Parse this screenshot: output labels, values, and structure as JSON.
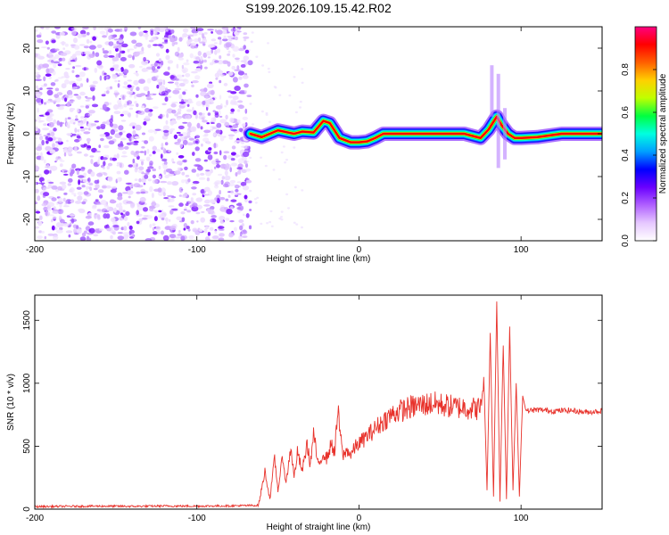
{
  "chart_data": [
    {
      "type": "heatmap",
      "title": "S199.2026.109.15.42.R02",
      "xlabel": "Height of straight line (km)",
      "ylabel": "Frequency (Hz)",
      "xlim": [
        -200,
        150
      ],
      "ylim": [
        -25,
        25
      ],
      "x_ticks": [
        -200,
        -100,
        0,
        100
      ],
      "y_ticks": [
        -20,
        -10,
        0,
        10,
        20
      ],
      "colorbar": {
        "label": "Normalized spectral amplitude",
        "range": [
          0,
          1
        ],
        "ticks": [
          "0.0",
          "0.2",
          "0.4",
          "0.6",
          "0.8"
        ],
        "colors": [
          "#ffffff",
          "#e6c8ff",
          "#b060ff",
          "#6a00ff",
          "#0000ff",
          "#00a0ff",
          "#00ffe0",
          "#00ff40",
          "#c0ff00",
          "#ffd000",
          "#ff6000",
          "#ff0000",
          "#ff0080"
        ]
      },
      "noise_region_x": [
        -200,
        -67
      ],
      "ridge_center": [
        {
          "x": -67,
          "y": 0
        },
        {
          "x": -60,
          "y": -0.8
        },
        {
          "x": -50,
          "y": 0.8
        },
        {
          "x": -40,
          "y": 0
        },
        {
          "x": -35,
          "y": 0.5
        },
        {
          "x": -28,
          "y": 0.3
        },
        {
          "x": -22,
          "y": 3
        },
        {
          "x": -18,
          "y": 2.5
        },
        {
          "x": -12,
          "y": -1
        },
        {
          "x": -5,
          "y": -2
        },
        {
          "x": 0,
          "y": -2
        },
        {
          "x": 5,
          "y": -1.8
        },
        {
          "x": 10,
          "y": -1
        },
        {
          "x": 15,
          "y": 0
        },
        {
          "x": 30,
          "y": 0
        },
        {
          "x": 65,
          "y": 0
        },
        {
          "x": 75,
          "y": -1
        },
        {
          "x": 80,
          "y": 1
        },
        {
          "x": 85,
          "y": 4
        },
        {
          "x": 88,
          "y": 2
        },
        {
          "x": 92,
          "y": 0
        },
        {
          "x": 96,
          "y": -1
        },
        {
          "x": 100,
          "y": -1
        },
        {
          "x": 110,
          "y": -0.8
        },
        {
          "x": 125,
          "y": 0
        },
        {
          "x": 150,
          "y": 0
        }
      ]
    },
    {
      "type": "line",
      "xlabel": "Height of straight line (km)",
      "ylabel": "SNR (10 * v/v)",
      "xlim": [
        -200,
        150
      ],
      "ylim": [
        0,
        1700
      ],
      "x_ticks": [
        -200,
        -100,
        0,
        100
      ],
      "y_ticks": [
        0,
        500,
        1000,
        1500
      ],
      "series": [
        {
          "name": "SNR",
          "color": "#e8322b",
          "x": [
            -200,
            -180,
            -160,
            -140,
            -120,
            -100,
            -80,
            -62,
            -58,
            -55,
            -52,
            -50,
            -47,
            -45,
            -42,
            -40,
            -38,
            -35,
            -32,
            -30,
            -28,
            -25,
            -22,
            -20,
            -17,
            -15,
            -13,
            -10,
            -7,
            -5,
            -2,
            0,
            5,
            10,
            15,
            20,
            25,
            30,
            35,
            40,
            45,
            50,
            55,
            60,
            65,
            70,
            75,
            77,
            79,
            81,
            83,
            85,
            87,
            89,
            91,
            93,
            95,
            97,
            99,
            101,
            103,
            110,
            120,
            130,
            140,
            150
          ],
          "y": [
            20,
            22,
            24,
            22,
            25,
            24,
            26,
            30,
            300,
            80,
            400,
            150,
            420,
            200,
            500,
            250,
            450,
            300,
            520,
            350,
            600,
            330,
            450,
            400,
            520,
            450,
            780,
            420,
            470,
            430,
            500,
            520,
            580,
            640,
            700,
            750,
            780,
            800,
            820,
            830,
            840,
            830,
            820,
            810,
            810,
            800,
            800,
            1050,
            150,
            1400,
            100,
            1650,
            60,
            1300,
            80,
            1450,
            150,
            1000,
            100,
            900,
            780,
            790,
            780,
            785,
            770,
            780
          ]
        }
      ]
    }
  ]
}
